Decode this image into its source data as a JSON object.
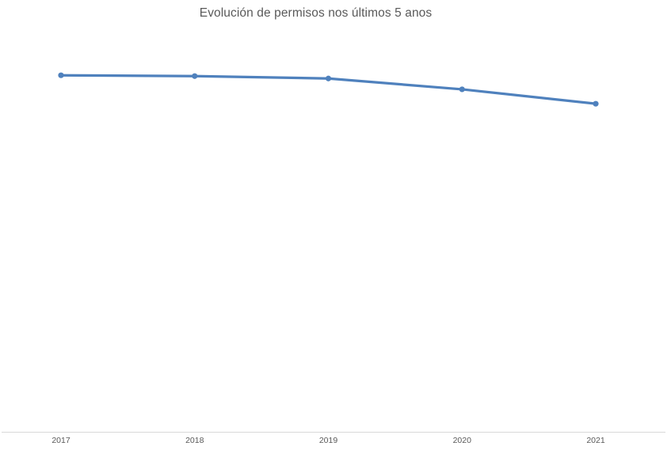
{
  "chart": {
    "title": "Evolución de permisos nos últimos 5 anos"
  },
  "chart_data": {
    "type": "line",
    "title": "Evolución de permisos nos últimos 5 anos",
    "categories": [
      "2017",
      "2018",
      "2019",
      "2020",
      "2021"
    ],
    "values": [
      89.1,
      88.9,
      88.3,
      85.6,
      82.0
    ],
    "xlabel": "",
    "ylabel": "",
    "ylim": [
      0,
      100
    ],
    "y_axis_labels_visible": false,
    "grid": false,
    "legend": false,
    "marker": "circle",
    "line_color": "#4F81BD",
    "axis_line_color": "#D9D9D9",
    "text_color": "#595959",
    "background_color": "#FFFFFF"
  }
}
